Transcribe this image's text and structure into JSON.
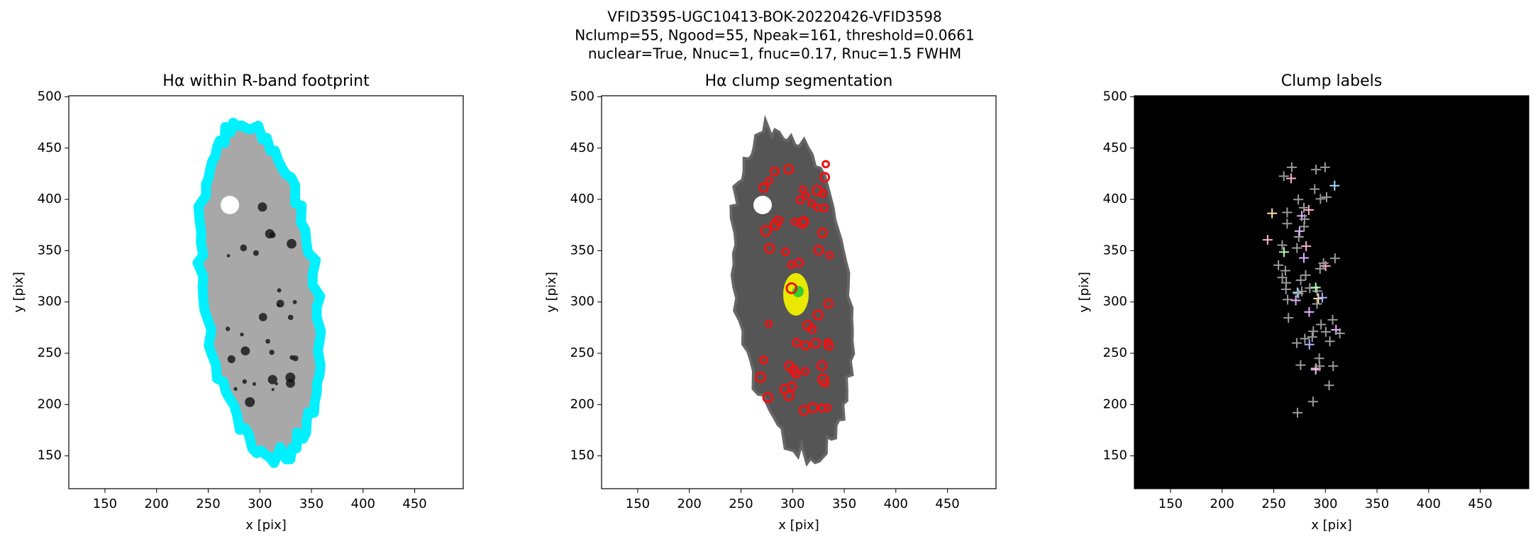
{
  "suptitle": [
    "VFID3595-UGC10413-BOK-20220426-VFID3598",
    "Nclump=55, Ngood=55, Npeak=161, threshold=0.0661",
    "nuclear=True, Nnuc=1, fnuc=0.17, Rnuc=1.5 FWHM"
  ],
  "chart_data": [
    {
      "type": "image",
      "title": "Hα within R-band footprint",
      "xlabel": "x [pix]",
      "ylabel": "y [pix]",
      "background": "#ffffff",
      "style": "footprint",
      "xlim": [
        115,
        497
      ],
      "ylim": [
        118,
        501
      ],
      "xticks": [
        150,
        200,
        250,
        300,
        350,
        400,
        450
      ],
      "yticks": [
        150,
        200,
        250,
        300,
        350,
        400,
        450,
        500
      ]
    },
    {
      "type": "image",
      "title": "Hα clump segmentation",
      "xlabel": "x [pix]",
      "ylabel": "y [pix]",
      "background": "#ffffff",
      "style": "segmentation",
      "xlim": [
        115,
        497
      ],
      "ylim": [
        118,
        501
      ],
      "xticks": [
        150,
        200,
        250,
        300,
        350,
        400,
        450
      ],
      "yticks": [
        150,
        200,
        250,
        300,
        350,
        400,
        450,
        500
      ]
    },
    {
      "type": "image",
      "title": "Clump labels",
      "xlabel": "x [pix]",
      "ylabel": "y [pix]",
      "background": "#000000",
      "style": "labels",
      "xlim": [
        115,
        497
      ],
      "ylim": [
        118,
        501
      ],
      "xticks": [
        150,
        200,
        250,
        300,
        350,
        400,
        450
      ],
      "yticks": [
        150,
        200,
        250,
        300,
        350,
        400,
        450,
        500
      ]
    }
  ]
}
